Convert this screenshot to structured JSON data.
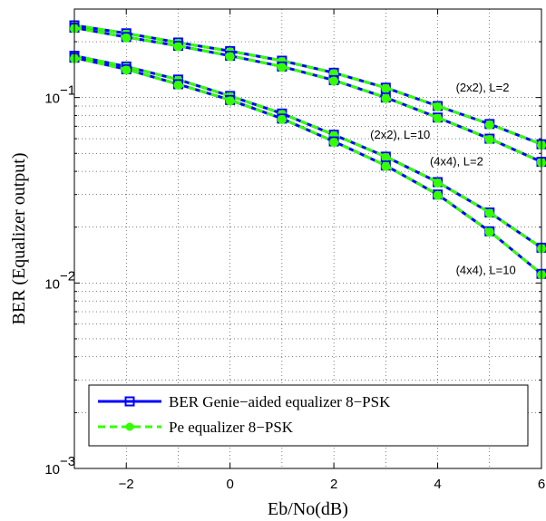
{
  "chart_data": {
    "type": "line",
    "xlabel": "Eb/No(dB)",
    "ylabel": "BER (Equalizer output)",
    "xlim": [
      -3,
      6
    ],
    "ylim": [
      0.001,
      0.3
    ],
    "yscale": "log",
    "grid": true,
    "x_ticks": [
      "−2",
      "0",
      "2",
      "4",
      "6"
    ],
    "x_tick_values": [
      -2,
      0,
      2,
      4,
      6
    ],
    "y_ticks": [
      {
        "value": 0.1,
        "base": "10",
        "exp": "−1"
      },
      {
        "value": 0.01,
        "base": "10",
        "exp": "−2"
      },
      {
        "value": 0.001,
        "base": "10",
        "exp": "−3"
      }
    ],
    "x": [
      -3,
      -2,
      -1,
      0,
      1,
      2,
      3,
      4,
      5,
      6
    ],
    "legend": {
      "placement": "lower-left",
      "entries": [
        {
          "label": "BER Genie−aided equalizer 8−PSK",
          "color": "#0000ff",
          "style": "solid",
          "marker": "square"
        },
        {
          "label": "Pe equalizer 8−PSK",
          "color": "#33ff00",
          "style": "dashed",
          "marker": "circle"
        }
      ]
    },
    "groups": [
      {
        "annotation": "(2x2), L=2",
        "annotation_at": [
          4.35,
          0.108
        ],
        "genie": [
          0.245,
          0.222,
          0.198,
          0.178,
          0.158,
          0.136,
          0.113,
          0.09,
          0.072,
          0.056
        ],
        "pe": [
          0.245,
          0.222,
          0.198,
          0.178,
          0.158,
          0.136,
          0.113,
          0.09,
          0.072,
          0.056
        ]
      },
      {
        "annotation": "(2x2), L=10",
        "annotation_at": [
          2.7,
          0.06
        ],
        "genie": [
          0.238,
          0.212,
          0.19,
          0.168,
          0.147,
          0.124,
          0.1,
          0.078,
          0.06,
          0.045
        ],
        "pe": [
          0.238,
          0.212,
          0.19,
          0.168,
          0.147,
          0.124,
          0.1,
          0.078,
          0.06,
          0.045
        ]
      },
      {
        "annotation": "(4x4), L=2",
        "annotation_at": [
          3.85,
          0.043
        ],
        "genie": [
          0.168,
          0.147,
          0.125,
          0.102,
          0.082,
          0.063,
          0.048,
          0.035,
          0.024,
          0.0155
        ],
        "pe": [
          0.168,
          0.147,
          0.125,
          0.102,
          0.082,
          0.063,
          0.048,
          0.035,
          0.024,
          0.0155
        ]
      },
      {
        "annotation": "(4x4), L=10",
        "annotation_at": [
          4.35,
          0.0112
        ],
        "genie": [
          0.164,
          0.142,
          0.118,
          0.097,
          0.077,
          0.058,
          0.043,
          0.03,
          0.019,
          0.0112
        ],
        "pe": [
          0.164,
          0.142,
          0.118,
          0.097,
          0.077,
          0.058,
          0.043,
          0.03,
          0.019,
          0.0112
        ]
      }
    ]
  }
}
